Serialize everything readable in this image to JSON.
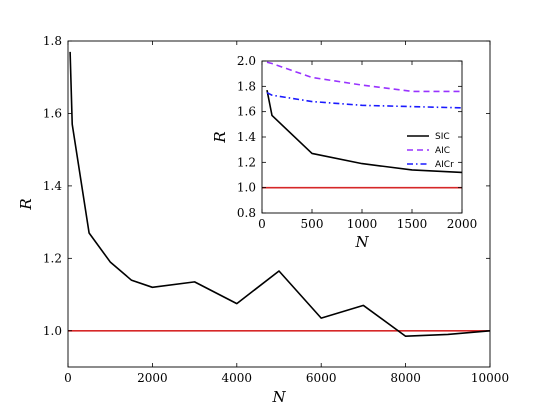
{
  "chart_data": [
    {
      "type": "line",
      "xlabel": "N",
      "ylabel": "R",
      "xlim": [
        0,
        10000
      ],
      "ylim": [
        0.9,
        1.8
      ],
      "xticks": [
        0,
        2000,
        4000,
        6000,
        8000,
        10000
      ],
      "xtick_labels": [
        "0",
        "2000",
        "4000",
        "6000",
        "8000",
        "10000"
      ],
      "yticks": [
        1.0,
        1.2,
        1.4,
        1.6,
        1.8
      ],
      "ytick_labels": [
        "1.0",
        "1.2",
        "1.4",
        "1.6",
        "1.8"
      ],
      "grid": false,
      "series": [
        {
          "color": "#000000",
          "style": "solid",
          "x": [
            50,
            100,
            500,
            1000,
            1500,
            2000,
            3000,
            4000,
            5000,
            6000,
            7000,
            8000,
            9000,
            10000
          ],
          "y": [
            1.77,
            1.57,
            1.27,
            1.19,
            1.14,
            1.12,
            1.135,
            1.075,
            1.165,
            1.035,
            1.07,
            0.985,
            0.99,
            1.0
          ]
        }
      ],
      "reference_line": {
        "y": 1.0,
        "color": "#d62728"
      }
    },
    {
      "type": "line",
      "xlabel": "N",
      "ylabel": "R",
      "xlim": [
        0,
        2000
      ],
      "ylim": [
        0.8,
        2.0
      ],
      "xticks": [
        0,
        500,
        1000,
        1500,
        2000
      ],
      "xtick_labels": [
        "0",
        "500",
        "1000",
        "1500",
        "2000"
      ],
      "yticks": [
        0.8,
        1.0,
        1.2,
        1.4,
        1.6,
        1.8,
        2.0
      ],
      "ytick_labels": [
        "0.8",
        "1.0",
        "1.2",
        "1.4",
        "1.6",
        "1.8",
        "2.0"
      ],
      "grid": false,
      "legend_position": "center-right",
      "series": [
        {
          "name": "SIC",
          "color": "#000000",
          "style": "solid",
          "x": [
            50,
            100,
            500,
            1000,
            1500,
            2000
          ],
          "y": [
            1.77,
            1.57,
            1.27,
            1.19,
            1.14,
            1.12
          ]
        },
        {
          "name": "AIC",
          "color": "#9933ff",
          "style": "dashed",
          "x": [
            50,
            100,
            500,
            1000,
            1500,
            2000
          ],
          "y": [
            1.99,
            1.98,
            1.87,
            1.81,
            1.76,
            1.76
          ]
        },
        {
          "name": "AICr",
          "color": "#1a1aff",
          "style": "dashdot",
          "x": [
            50,
            100,
            500,
            1000,
            1500,
            2000
          ],
          "y": [
            1.75,
            1.73,
            1.68,
            1.65,
            1.64,
            1.63
          ]
        }
      ],
      "reference_line": {
        "y": 1.0,
        "color": "#d62728"
      }
    }
  ]
}
